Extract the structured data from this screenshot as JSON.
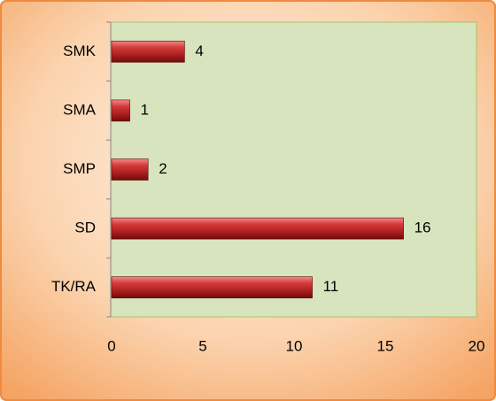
{
  "chart_data": {
    "type": "bar",
    "orientation": "horizontal",
    "categories": [
      "SMK",
      "SMA",
      "SMP",
      "SD",
      "TK/RA"
    ],
    "values": [
      4,
      1,
      2,
      16,
      11
    ],
    "color": "#c0282a",
    "xlim": [
      0,
      20
    ],
    "xticks": [
      0,
      5,
      10,
      15,
      20
    ],
    "grid": false
  }
}
